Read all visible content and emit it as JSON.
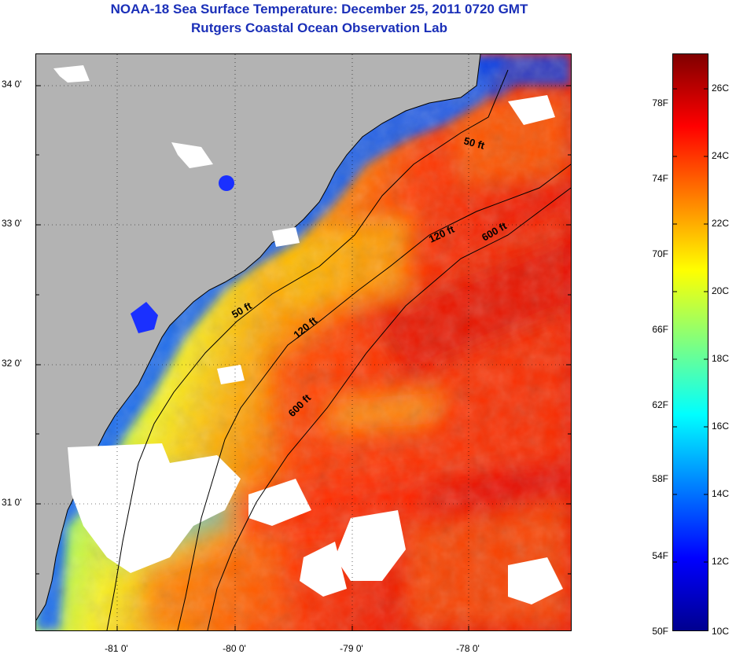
{
  "title": "NOAA-18 Sea Surface Temperature:  December 25, 2011 0720 GMT",
  "subtitle": "Rutgers Coastal Ocean Observation Lab",
  "colors": {
    "land": "#b3b3b3",
    "cloud": "#ffffff",
    "coastline": "#000000",
    "colormap": "jet"
  },
  "map": {
    "lat_range": [
      30.2,
      34.2
    ],
    "lon_range": [
      -81.7,
      -77.2
    ],
    "lat_ticks": [
      "34 0'",
      "33 0'",
      "32 0'",
      "31 0'"
    ],
    "lon_ticks": [
      "-81 0'",
      "-80 0'",
      "-79 0'",
      "-78 0'"
    ],
    "contour_labels": [
      "50 ft",
      "120 ft",
      "600 ft",
      "50 ft",
      "120 ft",
      "600 ft"
    ]
  },
  "colorbar": {
    "min_c": 10,
    "max_c": 27,
    "fahrenheit_labels": [
      "78F",
      "74F",
      "70F",
      "66F",
      "62F",
      "58F",
      "54F",
      "50F"
    ],
    "celsius_labels": [
      "26C",
      "24C",
      "22C",
      "20C",
      "18C",
      "16C",
      "14C",
      "12C",
      "10C"
    ]
  }
}
